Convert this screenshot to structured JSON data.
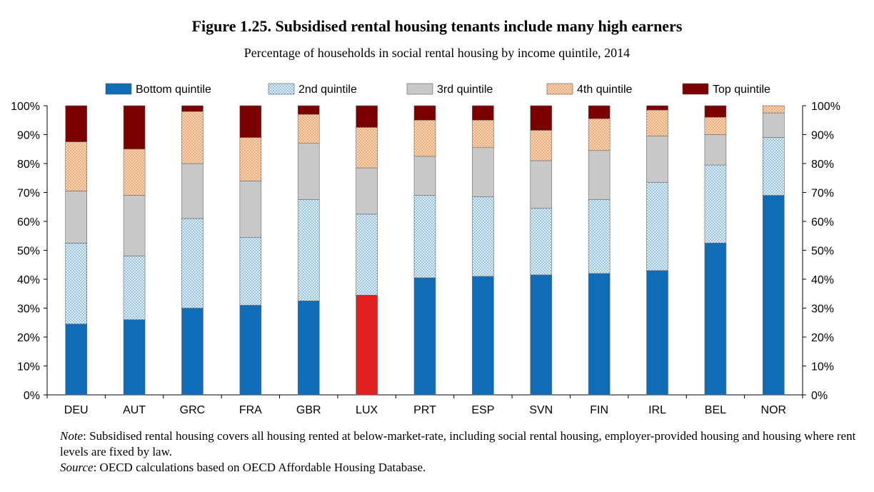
{
  "title": "Figure 1.25. Subsidised rental housing tenants include many high earners",
  "subtitle": "Percentage of households in social rental housing by income quintile, 2014",
  "notes": {
    "note_label": "Note",
    "note_text": ": Subsidised rental housing covers all housing rented at below-market-rate, including social rental housing, employer-provided housing and housing where rent levels are fixed by law.",
    "source_label": "Source",
    "source_text": ": OECD calculations based on OECD Affordable Housing Database."
  },
  "chart_data": {
    "type": "bar",
    "stacked": true,
    "categories": [
      "DEU",
      "AUT",
      "GRC",
      "FRA",
      "GBR",
      "LUX",
      "PRT",
      "ESP",
      "SVN",
      "FIN",
      "IRL",
      "BEL",
      "NOR"
    ],
    "ylim": [
      0,
      100
    ],
    "yticks": [
      "0%",
      "10%",
      "20%",
      "30%",
      "40%",
      "50%",
      "60%",
      "70%",
      "80%",
      "90%",
      "100%"
    ],
    "highlight": {
      "category": "LUX",
      "series": "Bottom quintile",
      "color": "#e02020"
    },
    "legend_position": "top",
    "series": [
      {
        "name": "Bottom quintile",
        "color": "#0f6db8",
        "values": [
          24.5,
          26,
          30,
          31,
          32.5,
          34.5,
          40.5,
          41,
          41.5,
          42,
          43,
          52.5,
          69
        ]
      },
      {
        "name": "2nd quintile",
        "color": "#cfe2f0",
        "values": [
          28,
          22,
          31,
          23.5,
          35,
          28,
          28.5,
          27.5,
          23,
          25.5,
          30.5,
          27,
          20
        ]
      },
      {
        "name": "3rd quintile",
        "color": "#c8c8c8",
        "values": [
          18,
          21,
          19,
          19.5,
          19.5,
          16,
          13.5,
          17,
          16.5,
          17,
          16,
          10.5,
          8.5
        ]
      },
      {
        "name": "4th quintile",
        "color": "#f5bf95",
        "values": [
          17,
          16,
          18,
          15,
          10,
          14,
          12.5,
          9.5,
          10.5,
          11,
          9,
          6,
          2.5
        ]
      },
      {
        "name": "Top quintile",
        "color": "#7b0000",
        "values": [
          12.5,
          15,
          2,
          11,
          3,
          7.5,
          5,
          5,
          8.5,
          4.5,
          1.5,
          4,
          0
        ]
      }
    ]
  }
}
